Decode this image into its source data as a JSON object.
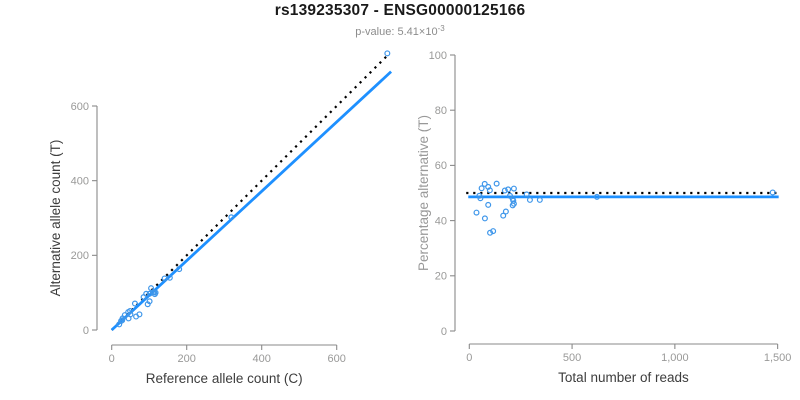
{
  "header": {
    "title": "rs139235307 - ENSG00000125166",
    "subtitle_prefix": "p-value: ",
    "pvalue_mantissa": "5.41",
    "pvalue_times": "×10",
    "pvalue_exponent": "-3"
  },
  "colors": {
    "line_blue": "#1E90FF",
    "marker_blue": "#3E96EA",
    "dotted_black": "#000000",
    "axis_gray": "#8a8a8a",
    "tick_label_gray": "#999998",
    "title_black": "#1a1a1a",
    "subtitle_gray": "#8c8c8c"
  },
  "chart_data": [
    {
      "type": "scatter",
      "name": "counts-scatter",
      "xlabel": "Reference allele count (C)",
      "ylabel": "Alternative allele count (T)",
      "xlabel_color": "#3d3d3d",
      "ylabel_color": "#3d3d3d",
      "xlim": [
        0,
        745
      ],
      "ylim": [
        0,
        745
      ],
      "xticks": [
        0,
        200,
        400,
        600
      ],
      "xtick_labels": [
        "0",
        "200",
        "400",
        "600"
      ],
      "yticks": [
        0,
        200,
        400,
        600
      ],
      "ytick_labels": [
        "0",
        "200",
        "400",
        "600"
      ],
      "marker": {
        "shape": "open-circle",
        "color": "#3E96EA",
        "radius_px": 2.4
      },
      "points": [
        [
          20,
          15
        ],
        [
          25,
          24
        ],
        [
          28,
          26
        ],
        [
          29,
          31
        ],
        [
          35,
          40
        ],
        [
          45,
          31
        ],
        [
          44,
          48
        ],
        [
          50,
          42
        ],
        [
          49,
          51
        ],
        [
          62,
          71
        ],
        [
          65,
          36
        ],
        [
          74,
          42
        ],
        [
          85,
          88
        ],
        [
          92,
          97
        ],
        [
          96,
          69
        ],
        [
          101,
          77
        ],
        [
          101,
          97
        ],
        [
          105,
          112
        ],
        [
          110,
          101
        ],
        [
          113,
          101
        ],
        [
          115,
          96
        ],
        [
          117,
          100
        ],
        [
          141,
          138
        ],
        [
          155,
          140
        ],
        [
          180,
          163
        ],
        [
          319,
          302
        ],
        [
          735,
          741
        ]
      ],
      "lines": [
        {
          "name": "identity-line",
          "style": "dotted",
          "color": "#000000",
          "from": [
            0,
            0
          ],
          "to": [
            737,
            737
          ]
        },
        {
          "name": "fit-line",
          "style": "solid",
          "color": "#1E90FF",
          "from": [
            0,
            0
          ],
          "to": [
            745,
            692
          ]
        }
      ]
    },
    {
      "type": "scatter",
      "name": "percentage-scatter",
      "xlabel": "Total number of reads",
      "ylabel": "Percentage alternative (T)",
      "xlabel_color": "#3d3d3d",
      "ylabel_color": "#999999",
      "xlim": [
        0,
        1500
      ],
      "ylim": [
        0,
        100
      ],
      "xticks": [
        0,
        500,
        1000,
        1500
      ],
      "xtick_labels": [
        "0",
        "500",
        "1,000",
        "1,500"
      ],
      "yticks": [
        0,
        20,
        40,
        60,
        80,
        100
      ],
      "ytick_labels": [
        "0",
        "20",
        "40",
        "60",
        "80",
        "100"
      ],
      "marker": {
        "shape": "open-circle",
        "color": "#3E96EA",
        "radius_px": 2.4
      },
      "points": [
        [
          35,
          42.9
        ],
        [
          49,
          49.0
        ],
        [
          54,
          48.1
        ],
        [
          60,
          51.7
        ],
        [
          75,
          53.3
        ],
        [
          76,
          40.8
        ],
        [
          92,
          52.2
        ],
        [
          92,
          45.7
        ],
        [
          100,
          51.0
        ],
        [
          133,
          53.4
        ],
        [
          101,
          35.6
        ],
        [
          116,
          36.2
        ],
        [
          173,
          50.9
        ],
        [
          189,
          51.3
        ],
        [
          165,
          41.8
        ],
        [
          178,
          43.3
        ],
        [
          198,
          49.0
        ],
        [
          217,
          51.6
        ],
        [
          211,
          47.9
        ],
        [
          214,
          47.2
        ],
        [
          211,
          45.5
        ],
        [
          217,
          46.1
        ],
        [
          279,
          49.5
        ],
        [
          295,
          47.5
        ],
        [
          343,
          47.5
        ],
        [
          621,
          48.6
        ],
        [
          1476,
          50.2
        ]
      ],
      "lines": [
        {
          "name": "expected-50pct-line",
          "style": "dotted",
          "color": "#000000",
          "from": [
            -15,
            50
          ],
          "to": [
            1505,
            50
          ]
        },
        {
          "name": "mean-pct-line",
          "style": "solid",
          "color": "#1E90FF",
          "from": [
            -5,
            48.6
          ],
          "to": [
            1505,
            48.6
          ]
        }
      ]
    }
  ]
}
